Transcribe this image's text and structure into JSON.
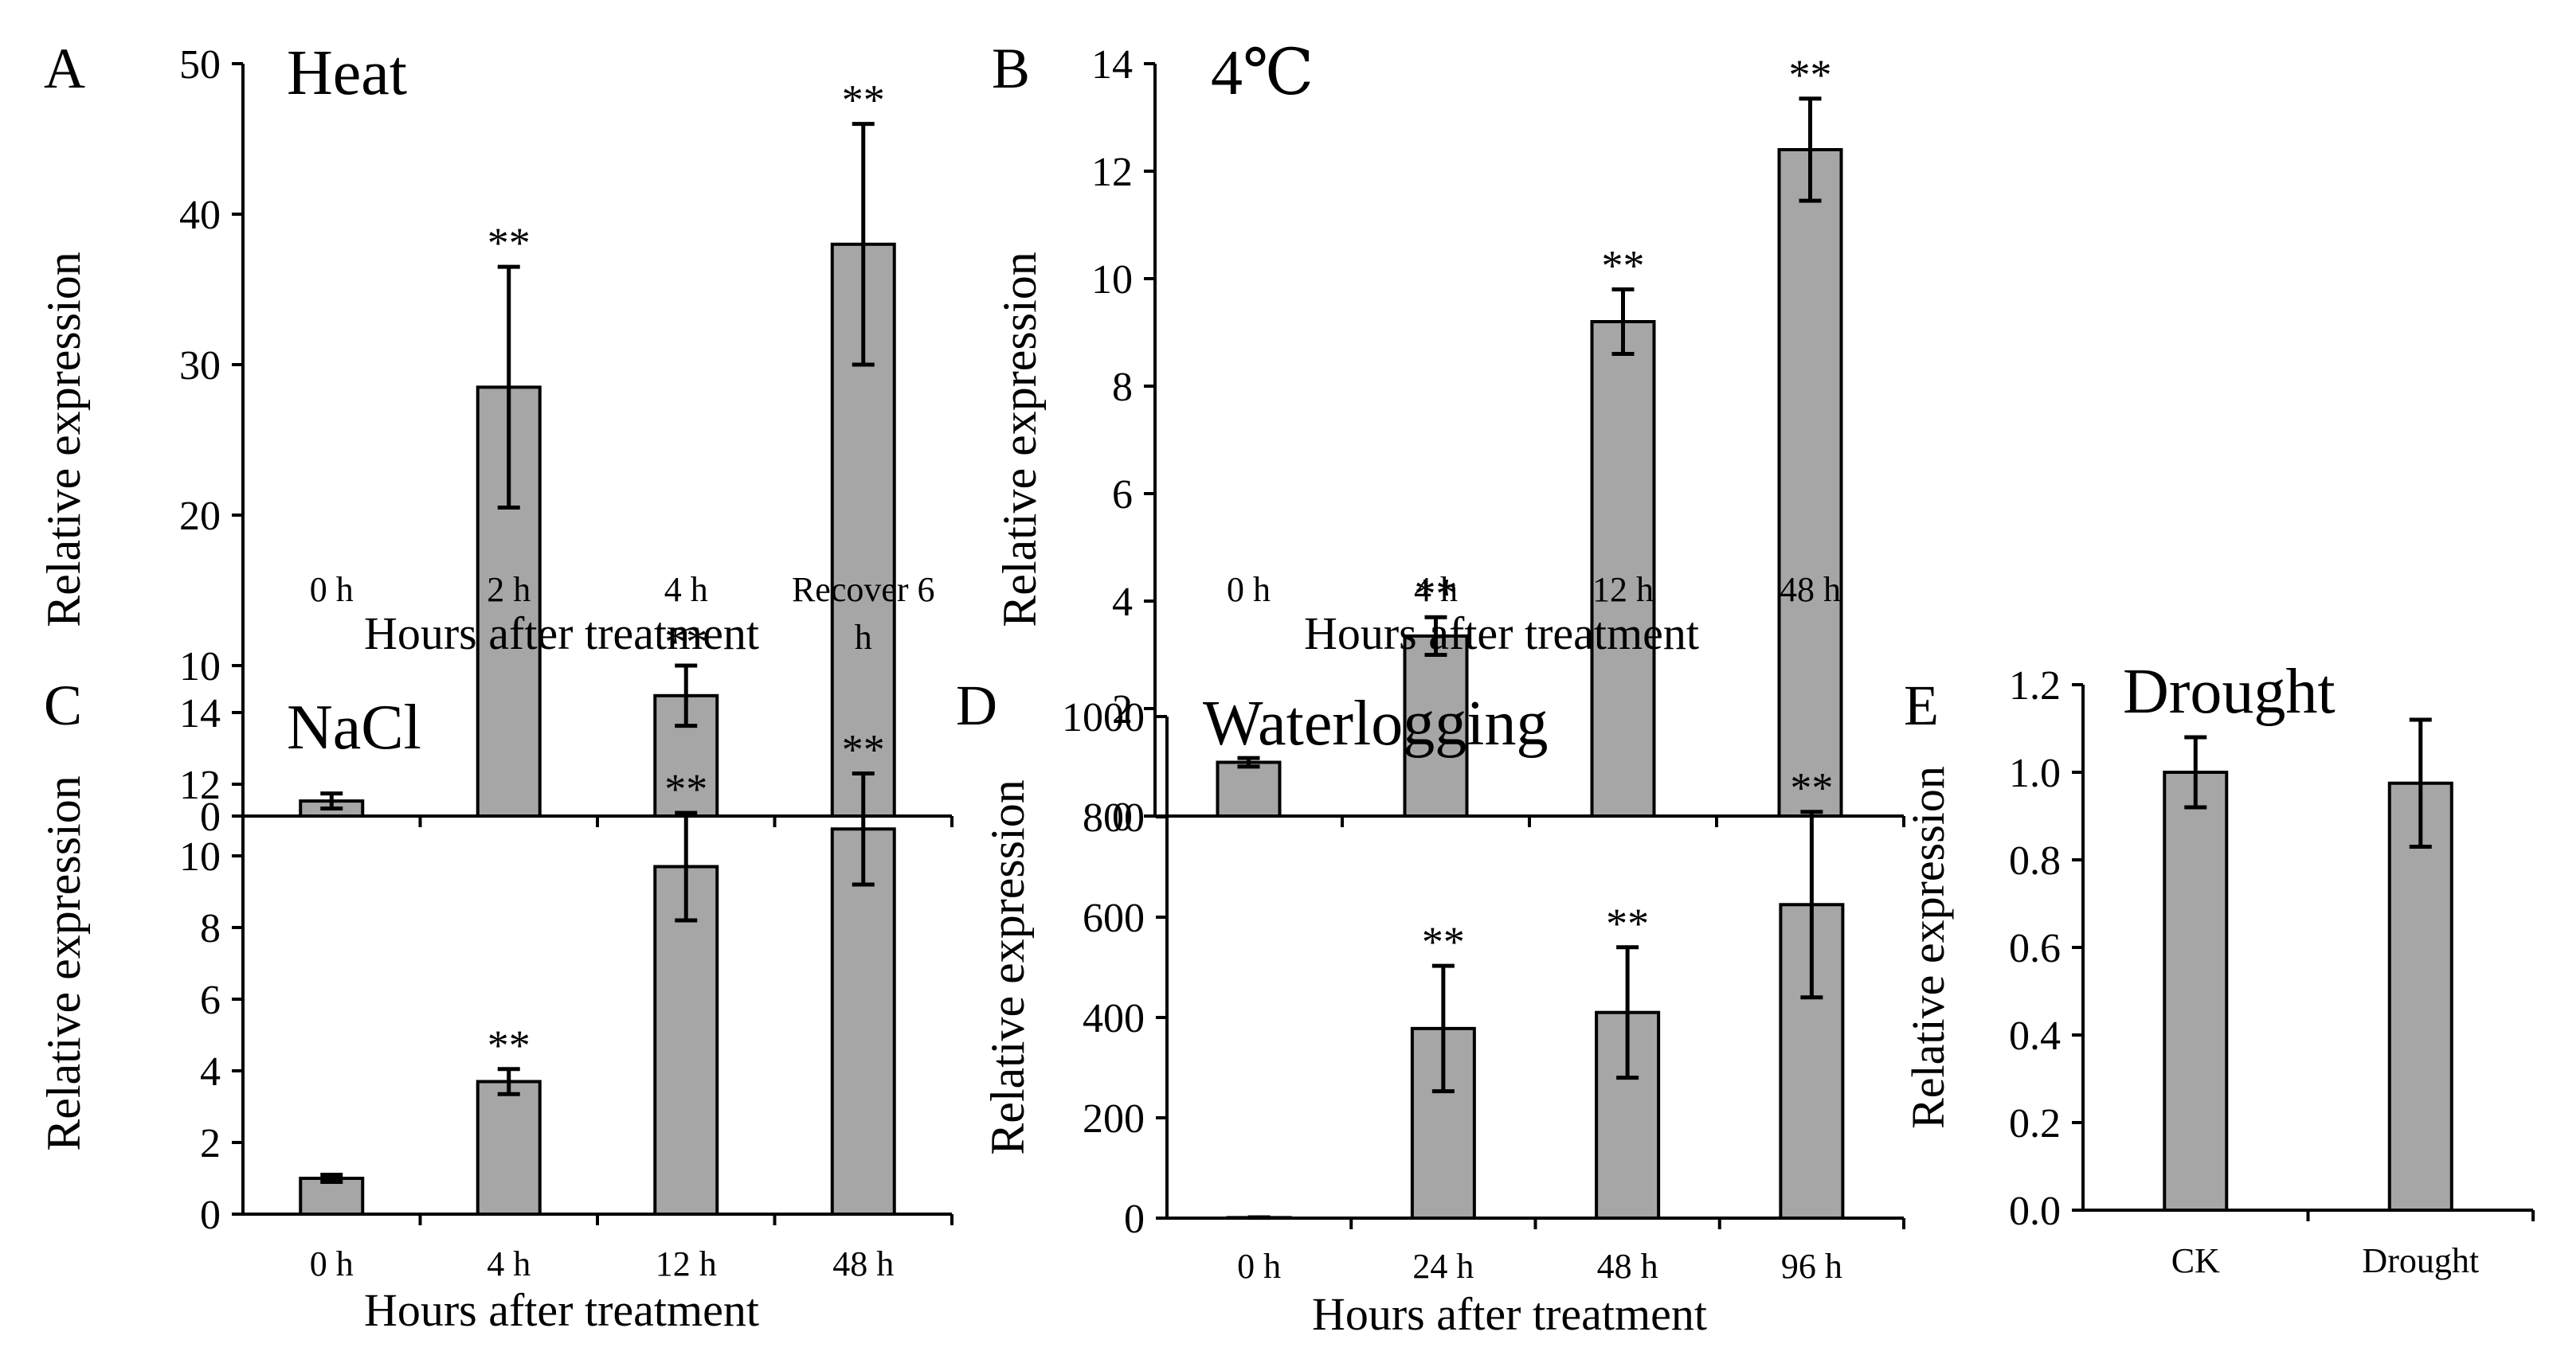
{
  "chart_data": [
    {
      "panel": "A",
      "type": "bar",
      "title": "Heat",
      "xlabel": "Hours after treatment",
      "ylabel": "Relative expression",
      "ylim": [
        0,
        50
      ],
      "yticks": [
        "0",
        "10",
        "20",
        "30",
        "40",
        "50"
      ],
      "categories": [
        "0 h",
        "2 h",
        "4 h",
        "Recover 6 h"
      ],
      "values": [
        1.0,
        28.5,
        8.0,
        38.0
      ],
      "errors": [
        0.5,
        8.0,
        2.0,
        8.0
      ],
      "significance": [
        "",
        "**",
        "**",
        "**"
      ]
    },
    {
      "panel": "B",
      "type": "bar",
      "title": "4℃",
      "xlabel": "Hours after treatment",
      "ylabel": "Relative expression",
      "ylim": [
        0,
        14
      ],
      "yticks": [
        "0",
        "2",
        "4",
        "6",
        "8",
        "10",
        "12",
        "14"
      ],
      "categories": [
        "0 h",
        "4 h",
        "12 h",
        "48 h"
      ],
      "values": [
        1.0,
        3.35,
        9.2,
        12.4
      ],
      "errors": [
        0.08,
        0.35,
        0.6,
        0.95
      ],
      "significance": [
        "",
        "**",
        "**",
        "**"
      ]
    },
    {
      "panel": "C",
      "type": "bar",
      "title": "NaCl",
      "xlabel": "Hours after treatment",
      "ylabel": "Relative expression",
      "ylim": [
        0,
        14
      ],
      "yticks": [
        "0",
        "2",
        "4",
        "6",
        "8",
        "10",
        "12",
        "14"
      ],
      "categories": [
        "0 h",
        "4 h",
        "12 h",
        "48 h"
      ],
      "values": [
        1.0,
        3.7,
        9.7,
        10.75
      ],
      "errors": [
        0.1,
        0.35,
        1.5,
        1.55
      ],
      "significance": [
        "",
        "**",
        "**",
        "**"
      ]
    },
    {
      "panel": "D",
      "type": "bar",
      "title": "Waterlogging",
      "xlabel": "Hours after treatment",
      "ylabel": "Relative expression",
      "ylim": [
        0,
        1000
      ],
      "yticks": [
        "0",
        "200",
        "400",
        "600",
        "800",
        "1000"
      ],
      "categories": [
        "0 h",
        "24 h",
        "48 h",
        "96 h"
      ],
      "values": [
        1,
        378,
        410,
        625
      ],
      "errors": [
        0.5,
        125,
        130,
        185
      ],
      "significance": [
        "",
        "**",
        "**",
        "**"
      ]
    },
    {
      "panel": "E",
      "type": "bar",
      "title": "Drought",
      "xlabel": "",
      "ylabel": "Relative expression",
      "ylim": [
        0,
        1.2
      ],
      "yticks": [
        "0.0",
        "0.2",
        "0.4",
        "0.6",
        "0.8",
        "1.0",
        "1.2"
      ],
      "categories": [
        "CK",
        "Drought"
      ],
      "values": [
        1.0,
        0.975
      ],
      "errors": [
        0.08,
        0.145
      ],
      "significance": [
        "",
        ""
      ]
    }
  ],
  "colors": {
    "bar_fill": "#a6a6a6",
    "stroke": "#000000"
  }
}
